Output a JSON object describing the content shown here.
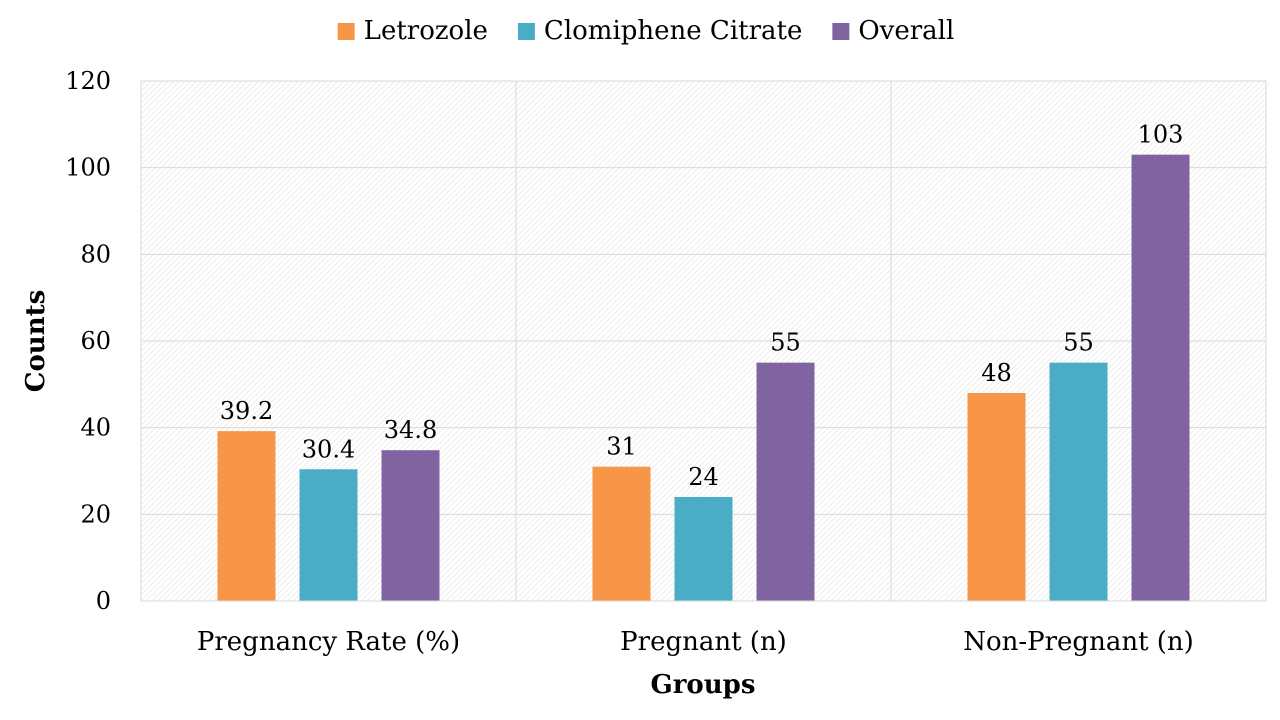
{
  "chart_data": {
    "type": "bar",
    "title": "",
    "xlabel": "Groups",
    "ylabel": "Counts",
    "ylim": [
      0,
      120
    ],
    "yticks": [
      0,
      20,
      40,
      60,
      80,
      100,
      120
    ],
    "grid": true,
    "legend_position": "top",
    "categories": [
      "Pregnancy Rate (%)",
      "Pregnant (n)",
      "Non-Pregnant (n)"
    ],
    "series": [
      {
        "name": "Letrozole",
        "color": "#F79646",
        "values": [
          39.2,
          31,
          48
        ],
        "labels": [
          "39.2",
          "31",
          "48"
        ]
      },
      {
        "name": "Clomiphene Citrate",
        "color": "#4BACC6",
        "values": [
          30.4,
          24,
          55
        ],
        "labels": [
          "30.4",
          "24",
          "55"
        ]
      },
      {
        "name": "Overall",
        "color": "#8064A2",
        "values": [
          34.8,
          55,
          103
        ],
        "labels": [
          "34.8",
          "55",
          "103"
        ]
      }
    ]
  }
}
